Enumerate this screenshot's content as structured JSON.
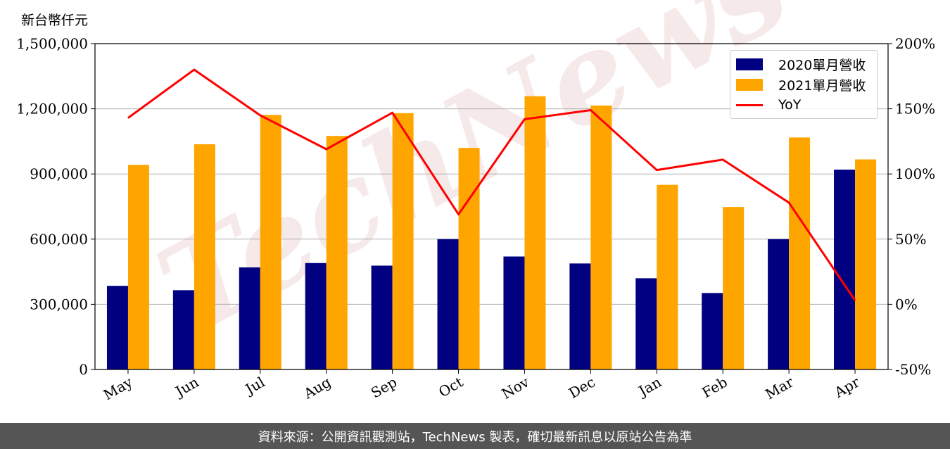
{
  "chart_data": {
    "type": "bar",
    "unit_label": "新台幣仟元",
    "categories": [
      "May",
      "Jun",
      "Jul",
      "Aug",
      "Sep",
      "Oct",
      "Nov",
      "Dec",
      "Jan",
      "Feb",
      "Mar",
      "Apr"
    ],
    "series": [
      {
        "name": "2020單月營收",
        "type": "bar",
        "color": "#000080",
        "values": [
          385000,
          365000,
          470000,
          490000,
          478000,
          600000,
          520000,
          488000,
          420000,
          352000,
          600000,
          920000
        ]
      },
      {
        "name": "2021單月營收",
        "type": "bar",
        "color": "#FFA500",
        "values": [
          942000,
          1037000,
          1172000,
          1075000,
          1180000,
          1020000,
          1258000,
          1215000,
          850000,
          748000,
          1068000,
          967000
        ]
      },
      {
        "name": "YoY",
        "type": "line",
        "axis": "right",
        "color": "#FF0000",
        "values": [
          143,
          180,
          145,
          119,
          147,
          69,
          142,
          149,
          103,
          111,
          78,
          3
        ]
      }
    ],
    "y_left": {
      "min": 0,
      "max": 1500000,
      "ticks": [
        0,
        300000,
        600000,
        900000,
        1200000,
        1500000
      ],
      "tick_labels": [
        "0",
        "300,000",
        "600,000",
        "900,000",
        "1,200,000",
        "1,500,000"
      ]
    },
    "y_right": {
      "min": -50,
      "max": 200,
      "ticks": [
        -50,
        0,
        50,
        100,
        150,
        200
      ],
      "tick_labels": [
        "-50%",
        "0%",
        "50%",
        "100%",
        "150%",
        "200%"
      ]
    },
    "grid": "horizontal",
    "legend_position": "top-right",
    "watermark": "TechNews"
  },
  "footer_text": "資料來源：公開資訊觀測站，TechNews 製表，確切最新訊息以原站公告為準"
}
